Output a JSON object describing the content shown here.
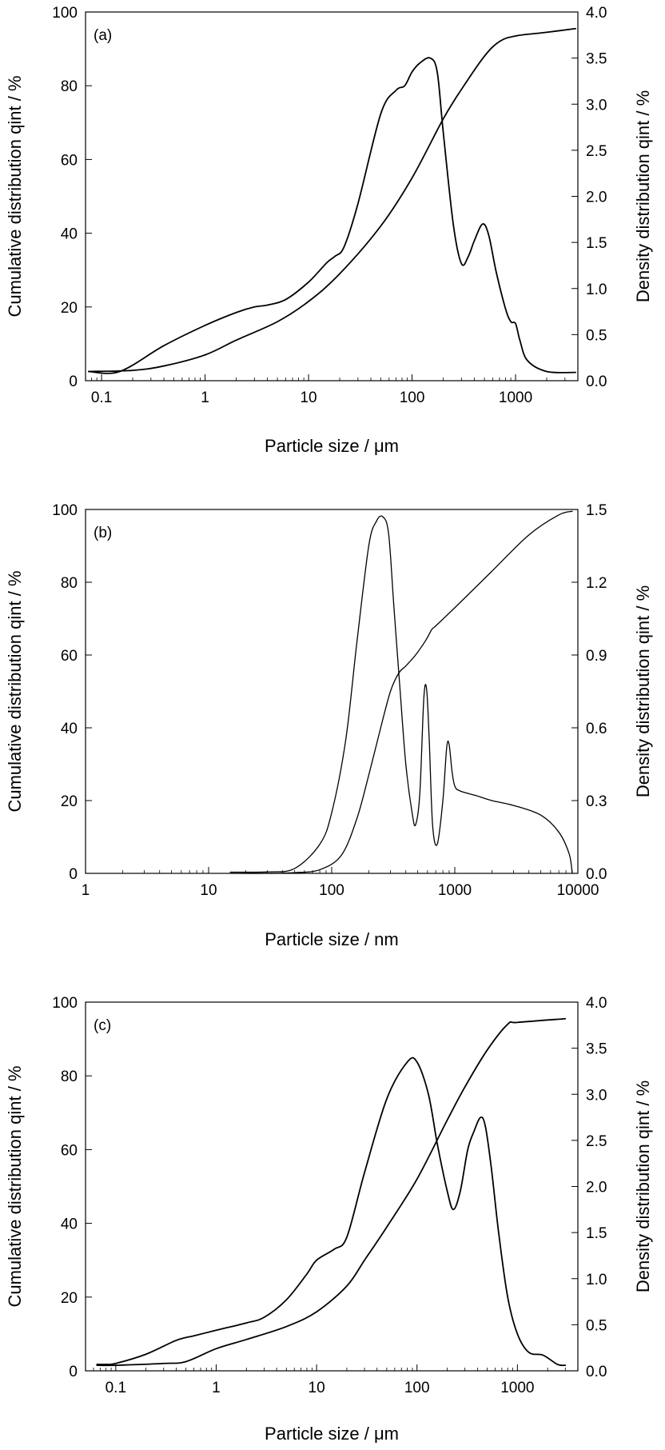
{
  "chart_data": [
    {
      "type": "line",
      "panel_label": "(a)",
      "xlabel": "Particle size / μm",
      "ylabel": "Cumulative distribution qint / %",
      "y2label": "Density distribution qint / %",
      "xscale": "log",
      "xlim": [
        0.07,
        4000
      ],
      "ylim": [
        0,
        100
      ],
      "y2lim": [
        0,
        4.0
      ],
      "x_ticks": [
        0.1,
        1,
        10,
        100,
        1000
      ],
      "x_tick_labels": [
        "0.1",
        "1",
        "10",
        "100",
        "1000"
      ],
      "y_ticks": [
        0,
        20,
        40,
        60,
        80,
        100
      ],
      "y_tick_labels": [
        "0",
        "20",
        "40",
        "60",
        "80",
        "100"
      ],
      "y2_ticks": [
        0,
        0.5,
        1.0,
        1.5,
        2.0,
        2.5,
        3.0,
        3.5,
        4.0
      ],
      "y2_tick_labels": [
        "0.0",
        "0.5",
        "1.0",
        "1.5",
        "2.0",
        "2.5",
        "3.0",
        "3.5",
        "4.0"
      ],
      "series": [
        {
          "name": "Cumulative distribution",
          "axis": "left",
          "x": [
            0.075,
            0.2,
            0.4,
            1,
            2,
            5,
            10,
            20,
            50,
            100,
            200,
            300,
            500,
            700,
            1000,
            2000,
            3800
          ],
          "y": [
            2.5,
            2.8,
            4,
            7,
            11,
            16,
            21.5,
            29,
            42,
            55,
            71,
            79,
            88,
            92,
            93.5,
            94.5,
            95.5
          ]
        },
        {
          "name": "Density distribution",
          "axis": "right",
          "x": [
            0.075,
            0.15,
            0.4,
            1,
            2,
            3,
            4,
            6,
            10,
            15,
            18,
            22,
            30,
            50,
            70,
            85,
            100,
            120,
            150,
            175,
            200,
            250,
            300,
            350,
            400,
            480,
            550,
            650,
            800,
            900,
            1000,
            1100,
            1300,
            2000,
            3800
          ],
          "y": [
            0.1,
            0.1,
            0.38,
            0.6,
            0.74,
            0.8,
            0.82,
            0.88,
            1.07,
            1.28,
            1.35,
            1.45,
            1.92,
            2.9,
            3.15,
            3.2,
            3.35,
            3.45,
            3.5,
            3.35,
            2.7,
            1.7,
            1.27,
            1.35,
            1.52,
            1.7,
            1.58,
            1.18,
            0.78,
            0.64,
            0.62,
            0.44,
            0.22,
            0.1,
            0.09
          ]
        }
      ]
    },
    {
      "type": "line",
      "panel_label": "(b)",
      "xlabel": "Particle size / nm",
      "ylabel": "Cumulative distribution qint / %",
      "y2label": "Density distribution qint / %",
      "xscale": "log",
      "xlim": [
        1,
        10000
      ],
      "ylim": [
        0,
        100
      ],
      "y2lim": [
        0,
        1.5
      ],
      "x_ticks": [
        1,
        10,
        100,
        1000,
        10000
      ],
      "x_tick_labels": [
        "1",
        "10",
        "100",
        "1000",
        "10000"
      ],
      "y_ticks": [
        0,
        20,
        40,
        60,
        80,
        100
      ],
      "y_tick_labels": [
        "0",
        "20",
        "40",
        "60",
        "80",
        "100"
      ],
      "y2_ticks": [
        0,
        0.3,
        0.6,
        0.9,
        1.2,
        1.5
      ],
      "y2_tick_labels": [
        "0.0",
        "0.3",
        "0.6",
        "0.9",
        "1.2",
        "1.5"
      ],
      "series": [
        {
          "name": "Cumulative distribution",
          "axis": "left",
          "x": [
            15,
            30,
            50,
            80,
            120,
            160,
            200,
            250,
            300,
            350,
            400,
            480,
            580,
            650,
            700,
            1000,
            2000,
            4000,
            7000,
            9000
          ],
          "y": [
            0,
            0,
            0.2,
            1,
            5,
            15,
            27,
            40,
            50,
            55,
            57,
            60,
            64,
            67,
            68,
            73,
            83,
            93,
            98.5,
            99.5
          ]
        },
        {
          "name": "Density distribution",
          "axis": "right",
          "x": [
            15,
            30,
            50,
            80,
            100,
            130,
            160,
            200,
            230,
            260,
            290,
            320,
            360,
            400,
            450,
            480,
            520,
            560,
            590,
            620,
            660,
            720,
            800,
            860,
            900,
            950,
            1000,
            1100,
            1500,
            2000,
            3000,
            5000,
            7000,
            8500,
            9000
          ],
          "y": [
            0.005,
            0.006,
            0.02,
            0.12,
            0.25,
            0.55,
            0.95,
            1.35,
            1.45,
            1.47,
            1.4,
            1.1,
            0.75,
            0.45,
            0.25,
            0.2,
            0.33,
            0.72,
            0.76,
            0.55,
            0.2,
            0.12,
            0.3,
            0.52,
            0.53,
            0.42,
            0.36,
            0.34,
            0.32,
            0.3,
            0.28,
            0.24,
            0.17,
            0.08,
            0.0
          ]
        }
      ]
    },
    {
      "type": "line",
      "panel_label": "(c)",
      "xlabel": "Particle size / μm",
      "ylabel": "Cumulative distribution qint / %",
      "y2label": "Density distribution qint / %",
      "xscale": "log",
      "xlim": [
        0.05,
        4000
      ],
      "ylim": [
        0,
        100
      ],
      "y2lim": [
        0,
        4.0
      ],
      "x_ticks": [
        0.1,
        1,
        10,
        100,
        1000
      ],
      "x_tick_labels": [
        "0.1",
        "1",
        "10",
        "100",
        "1000"
      ],
      "y_ticks": [
        0,
        20,
        40,
        60,
        80,
        100
      ],
      "y_tick_labels": [
        "0",
        "20",
        "40",
        "60",
        "80",
        "100"
      ],
      "y2_ticks": [
        0,
        0.5,
        1.0,
        1.5,
        2.0,
        2.5,
        3.0,
        3.5,
        4.0
      ],
      "y2_tick_labels": [
        "0.0",
        "0.5",
        "1.0",
        "1.5",
        "2.0",
        "2.5",
        "3.0",
        "3.5",
        "4.0"
      ],
      "series": [
        {
          "name": "Cumulative distribution",
          "axis": "left",
          "x": [
            0.065,
            0.1,
            0.3,
            0.5,
            1,
            2,
            5,
            10,
            20,
            30,
            50,
            100,
            200,
            300,
            500,
            800,
            1000,
            3000
          ],
          "y": [
            1.5,
            1.5,
            2,
            2.5,
            6,
            8.5,
            12,
            16,
            23,
            30,
            39,
            52,
            68,
            77,
            87,
            94,
            94.5,
            95.5
          ]
        },
        {
          "name": "Density distribution",
          "axis": "right",
          "x": [
            0.065,
            0.08,
            0.1,
            0.2,
            0.4,
            0.6,
            1,
            2,
            3,
            5,
            8,
            10,
            15,
            20,
            30,
            50,
            80,
            100,
            130,
            160,
            200,
            230,
            270,
            320,
            370,
            430,
            480,
            550,
            650,
            800,
            1000,
            1300,
            1800,
            2500,
            3000
          ],
          "y": [
            0.07,
            0.07,
            0.08,
            0.18,
            0.33,
            0.38,
            0.44,
            0.52,
            0.58,
            0.77,
            1.05,
            1.2,
            1.32,
            1.45,
            2.15,
            2.95,
            3.35,
            3.35,
            3.0,
            2.45,
            1.95,
            1.75,
            1.95,
            2.4,
            2.6,
            2.75,
            2.65,
            2.2,
            1.5,
            0.8,
            0.4,
            0.2,
            0.17,
            0.07,
            0.06
          ]
        }
      ]
    }
  ]
}
